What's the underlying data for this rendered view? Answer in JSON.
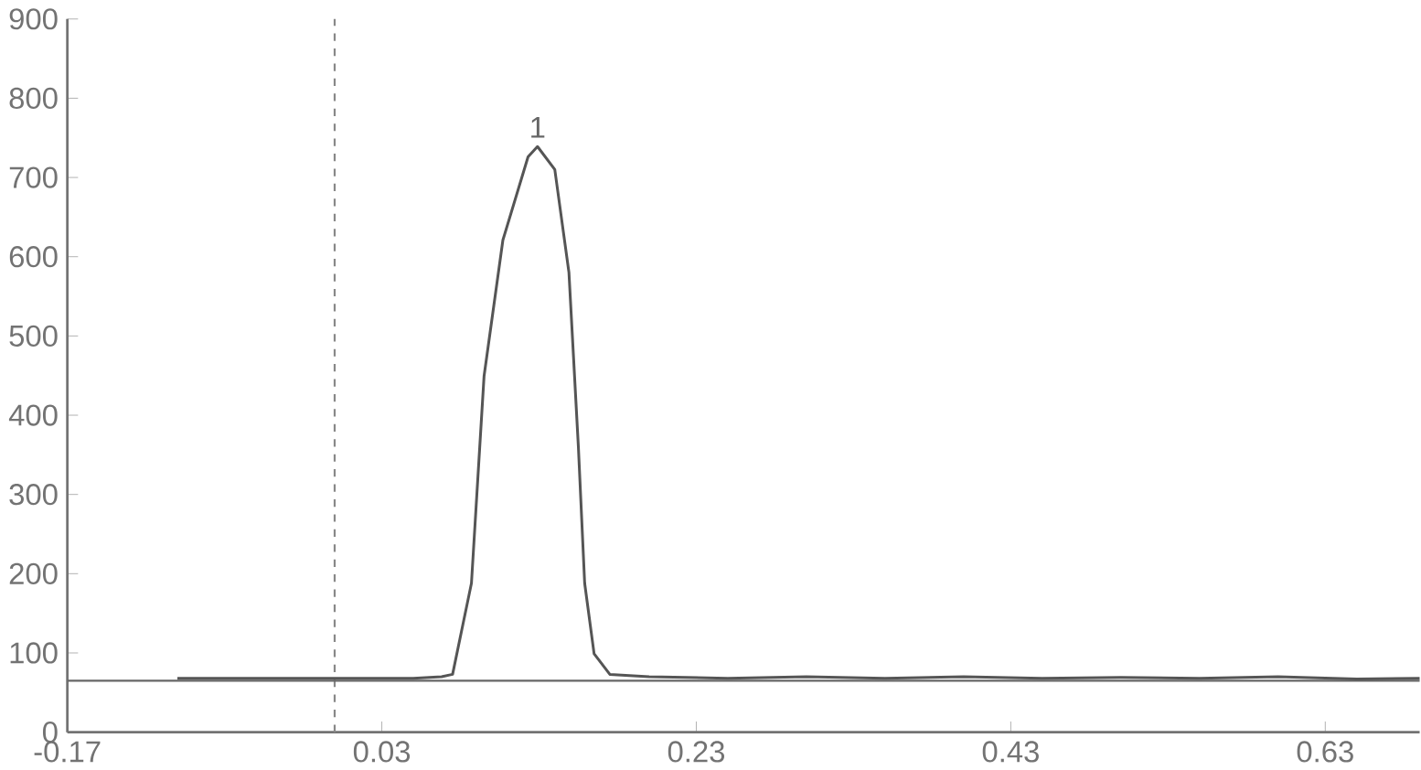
{
  "chart_data": {
    "type": "line",
    "series": [
      {
        "color": "#555555",
        "x": [
          -0.1,
          -0.05,
          0.0,
          0.05,
          0.068,
          0.075,
          0.087,
          0.095,
          0.107,
          0.123,
          0.129,
          0.14,
          0.149,
          0.155,
          0.159,
          0.165,
          0.175,
          0.2,
          0.25,
          0.3,
          0.35,
          0.4,
          0.45,
          0.5,
          0.55,
          0.6,
          0.65,
          0.69
        ],
        "values": [
          68,
          68,
          68,
          68,
          70,
          73,
          188,
          449,
          621,
          726,
          739,
          710,
          580,
          360,
          188,
          99,
          73,
          70,
          68,
          70,
          68,
          70,
          68,
          69,
          68,
          70,
          67,
          68
        ]
      }
    ],
    "xlim": [
      -0.17,
      0.69
    ],
    "ylim": [
      0,
      900
    ],
    "xticks": [
      -0.17,
      0.03,
      0.23,
      0.43,
      0.63
    ],
    "yticks": [
      0,
      100,
      200,
      300,
      400,
      500,
      600,
      700,
      800,
      900
    ],
    "ref_lines": [
      {
        "axis": "x",
        "value": 0.0,
        "color": "#888888",
        "line_style": "dashed"
      },
      {
        "axis": "y",
        "value": 65,
        "color": "#666666",
        "line_style": "solid"
      }
    ],
    "annotations": [
      {
        "text": "1",
        "x": 0.129,
        "y": 739
      }
    ],
    "grid": false,
    "marker": "none",
    "line_style": "solid"
  }
}
